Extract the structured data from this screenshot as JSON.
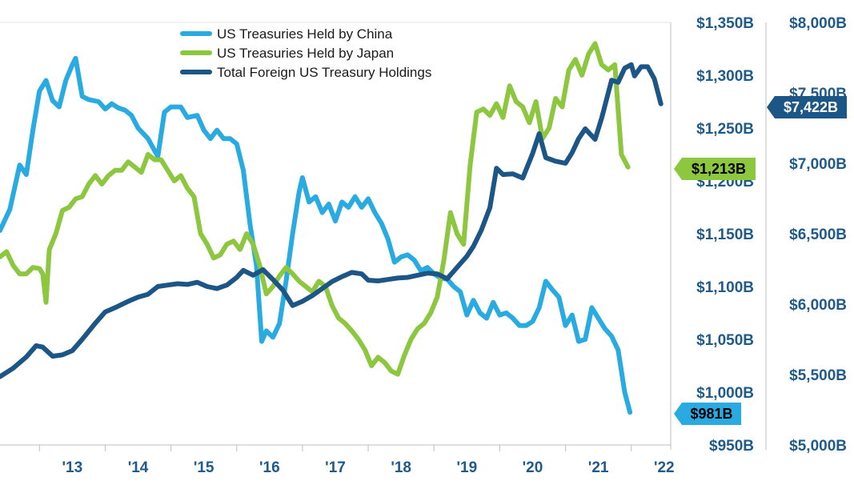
{
  "chart_data": {
    "type": "line",
    "title": "",
    "xlabel": "",
    "ylabel": "",
    "x_ticks": [
      "'13",
      "'14",
      "'15",
      "'16",
      "'17",
      "'18",
      "'19",
      "'20",
      "'21",
      "'22"
    ],
    "xlim": [
      2012.4,
      2022.6
    ],
    "left_axis": {
      "ylim": [
        950,
        1350
      ],
      "ticks": [
        950,
        1000,
        1050,
        1100,
        1150,
        1200,
        1250,
        1300,
        1350
      ],
      "tick_labels": [
        "$950B",
        "$1,000B",
        "$1,050B",
        "$1,100B",
        "$1,150B",
        "$1,200B",
        "$1,250B",
        "$1,300B",
        "$1,350B"
      ]
    },
    "right_axis": {
      "ylim": [
        5000,
        8000
      ],
      "ticks": [
        5000,
        5500,
        6000,
        6500,
        7000,
        7500,
        8000
      ],
      "tick_labels": [
        "$5,000B",
        "$5,500B",
        "$6,000B",
        "$6,500B",
        "$7,000B",
        "$7,500B",
        "$8,000B"
      ]
    },
    "grid": false,
    "legend_position": "top-center",
    "series": [
      {
        "name": "US Treasuries Held by China",
        "axis": "left",
        "color": "#29abe2",
        "end_label": "$981B",
        "points": [
          [
            2012.4,
            1153
          ],
          [
            2012.55,
            1173
          ],
          [
            2012.7,
            1215
          ],
          [
            2012.8,
            1206
          ],
          [
            2012.9,
            1248
          ],
          [
            2013.0,
            1285
          ],
          [
            2013.1,
            1295
          ],
          [
            2013.2,
            1276
          ],
          [
            2013.3,
            1270
          ],
          [
            2013.4,
            1295
          ],
          [
            2013.5,
            1310
          ],
          [
            2013.55,
            1316
          ],
          [
            2013.65,
            1280
          ],
          [
            2013.75,
            1277
          ],
          [
            2013.9,
            1275
          ],
          [
            2014.0,
            1268
          ],
          [
            2014.1,
            1273
          ],
          [
            2014.2,
            1269
          ],
          [
            2014.3,
            1267
          ],
          [
            2014.4,
            1262
          ],
          [
            2014.5,
            1250
          ],
          [
            2014.65,
            1240
          ],
          [
            2014.8,
            1223
          ],
          [
            2014.9,
            1265
          ],
          [
            2015.0,
            1270
          ],
          [
            2015.15,
            1270
          ],
          [
            2015.25,
            1260
          ],
          [
            2015.4,
            1262
          ],
          [
            2015.5,
            1248
          ],
          [
            2015.6,
            1240
          ],
          [
            2015.7,
            1248
          ],
          [
            2015.8,
            1240
          ],
          [
            2015.9,
            1240
          ],
          [
            2016.0,
            1235
          ],
          [
            2016.1,
            1210
          ],
          [
            2016.2,
            1160
          ],
          [
            2016.3,
            1120
          ],
          [
            2016.38,
            1048
          ],
          [
            2016.45,
            1058
          ],
          [
            2016.55,
            1052
          ],
          [
            2016.65,
            1065
          ],
          [
            2016.75,
            1105
          ],
          [
            2016.85,
            1150
          ],
          [
            2016.95,
            1190
          ],
          [
            2017.0,
            1203
          ],
          [
            2017.1,
            1180
          ],
          [
            2017.2,
            1185
          ],
          [
            2017.3,
            1170
          ],
          [
            2017.4,
            1178
          ],
          [
            2017.5,
            1162
          ],
          [
            2017.6,
            1180
          ],
          [
            2017.7,
            1175
          ],
          [
            2017.8,
            1185
          ],
          [
            2017.9,
            1175
          ],
          [
            2018.0,
            1183
          ],
          [
            2018.1,
            1170
          ],
          [
            2018.2,
            1160
          ],
          [
            2018.3,
            1145
          ],
          [
            2018.4,
            1123
          ],
          [
            2018.5,
            1128
          ],
          [
            2018.6,
            1130
          ],
          [
            2018.7,
            1125
          ],
          [
            2018.8,
            1115
          ],
          [
            2018.9,
            1118
          ],
          [
            2019.0,
            1112
          ],
          [
            2019.1,
            1108
          ],
          [
            2019.2,
            1107
          ],
          [
            2019.3,
            1100
          ],
          [
            2019.4,
            1095
          ],
          [
            2019.5,
            1073
          ],
          [
            2019.6,
            1087
          ],
          [
            2019.7,
            1075
          ],
          [
            2019.8,
            1070
          ],
          [
            2019.9,
            1085
          ],
          [
            2020.0,
            1073
          ],
          [
            2020.1,
            1075
          ],
          [
            2020.2,
            1070
          ],
          [
            2020.3,
            1063
          ],
          [
            2020.4,
            1063
          ],
          [
            2020.5,
            1067
          ],
          [
            2020.6,
            1080
          ],
          [
            2020.7,
            1105
          ],
          [
            2020.8,
            1097
          ],
          [
            2020.9,
            1090
          ],
          [
            2021.0,
            1063
          ],
          [
            2021.1,
            1073
          ],
          [
            2021.2,
            1048
          ],
          [
            2021.3,
            1050
          ],
          [
            2021.4,
            1080
          ],
          [
            2021.5,
            1070
          ],
          [
            2021.6,
            1060
          ],
          [
            2021.7,
            1053
          ],
          [
            2021.8,
            1040
          ],
          [
            2021.9,
            1000
          ],
          [
            2021.98,
            981
          ]
        ]
      },
      {
        "name": "US Treasuries Held by Japan",
        "axis": "left",
        "color": "#8dc63f",
        "end_label": "$1,213B",
        "points": [
          [
            2012.4,
            1128
          ],
          [
            2012.5,
            1133
          ],
          [
            2012.6,
            1120
          ],
          [
            2012.7,
            1112
          ],
          [
            2012.8,
            1112
          ],
          [
            2012.9,
            1118
          ],
          [
            2013.0,
            1117
          ],
          [
            2013.05,
            1112
          ],
          [
            2013.1,
            1085
          ],
          [
            2013.15,
            1135
          ],
          [
            2013.25,
            1150
          ],
          [
            2013.35,
            1172
          ],
          [
            2013.45,
            1175
          ],
          [
            2013.55,
            1183
          ],
          [
            2013.65,
            1185
          ],
          [
            2013.75,
            1197
          ],
          [
            2013.85,
            1205
          ],
          [
            2013.95,
            1197
          ],
          [
            2014.05,
            1205
          ],
          [
            2014.15,
            1210
          ],
          [
            2014.25,
            1210
          ],
          [
            2014.35,
            1218
          ],
          [
            2014.45,
            1213
          ],
          [
            2014.55,
            1208
          ],
          [
            2014.65,
            1225
          ],
          [
            2014.75,
            1220
          ],
          [
            2014.85,
            1220
          ],
          [
            2014.95,
            1210
          ],
          [
            2015.05,
            1200
          ],
          [
            2015.15,
            1205
          ],
          [
            2015.25,
            1193
          ],
          [
            2015.35,
            1185
          ],
          [
            2015.45,
            1150
          ],
          [
            2015.55,
            1140
          ],
          [
            2015.65,
            1127
          ],
          [
            2015.75,
            1130
          ],
          [
            2015.85,
            1140
          ],
          [
            2015.95,
            1143
          ],
          [
            2016.05,
            1135
          ],
          [
            2016.15,
            1150
          ],
          [
            2016.25,
            1140
          ],
          [
            2016.35,
            1120
          ],
          [
            2016.45,
            1093
          ],
          [
            2016.55,
            1100
          ],
          [
            2016.65,
            1110
          ],
          [
            2016.75,
            1118
          ],
          [
            2016.85,
            1112
          ],
          [
            2016.95,
            1105
          ],
          [
            2017.05,
            1100
          ],
          [
            2017.15,
            1095
          ],
          [
            2017.25,
            1105
          ],
          [
            2017.35,
            1100
          ],
          [
            2017.45,
            1082
          ],
          [
            2017.55,
            1070
          ],
          [
            2017.65,
            1065
          ],
          [
            2017.75,
            1058
          ],
          [
            2017.85,
            1050
          ],
          [
            2017.95,
            1040
          ],
          [
            2018.05,
            1025
          ],
          [
            2018.15,
            1033
          ],
          [
            2018.25,
            1028
          ],
          [
            2018.35,
            1020
          ],
          [
            2018.45,
            1017
          ],
          [
            2018.55,
            1035
          ],
          [
            2018.65,
            1050
          ],
          [
            2018.75,
            1060
          ],
          [
            2018.85,
            1065
          ],
          [
            2018.95,
            1075
          ],
          [
            2019.05,
            1090
          ],
          [
            2019.15,
            1125
          ],
          [
            2019.25,
            1170
          ],
          [
            2019.35,
            1150
          ],
          [
            2019.45,
            1140
          ],
          [
            2019.55,
            1215
          ],
          [
            2019.65,
            1265
          ],
          [
            2019.75,
            1268
          ],
          [
            2019.85,
            1262
          ],
          [
            2019.95,
            1273
          ],
          [
            2020.05,
            1260
          ],
          [
            2020.15,
            1290
          ],
          [
            2020.25,
            1275
          ],
          [
            2020.35,
            1270
          ],
          [
            2020.45,
            1255
          ],
          [
            2020.55,
            1275
          ],
          [
            2020.65,
            1240
          ],
          [
            2020.75,
            1250
          ],
          [
            2020.85,
            1278
          ],
          [
            2020.95,
            1270
          ],
          [
            2021.05,
            1305
          ],
          [
            2021.15,
            1315
          ],
          [
            2021.25,
            1300
          ],
          [
            2021.35,
            1320
          ],
          [
            2021.45,
            1330
          ],
          [
            2021.55,
            1310
          ],
          [
            2021.65,
            1305
          ],
          [
            2021.75,
            1310
          ],
          [
            2021.85,
            1225
          ],
          [
            2021.95,
            1213
          ]
        ]
      },
      {
        "name": "Total Foreign US Treasury Holdings",
        "axis": "right",
        "color": "#1c5687",
        "end_label": "$7,422B",
        "points": [
          [
            2012.4,
            5485
          ],
          [
            2012.6,
            5545
          ],
          [
            2012.8,
            5625
          ],
          [
            2012.95,
            5705
          ],
          [
            2013.05,
            5695
          ],
          [
            2013.2,
            5630
          ],
          [
            2013.35,
            5640
          ],
          [
            2013.5,
            5670
          ],
          [
            2013.65,
            5750
          ],
          [
            2013.85,
            5865
          ],
          [
            2014.0,
            5945
          ],
          [
            2014.15,
            5975
          ],
          [
            2014.35,
            6020
          ],
          [
            2014.5,
            6050
          ],
          [
            2014.65,
            6070
          ],
          [
            2014.8,
            6125
          ],
          [
            2014.95,
            6135
          ],
          [
            2015.1,
            6145
          ],
          [
            2015.25,
            6140
          ],
          [
            2015.4,
            6155
          ],
          [
            2015.55,
            6125
          ],
          [
            2015.7,
            6110
          ],
          [
            2015.85,
            6135
          ],
          [
            2016.0,
            6190
          ],
          [
            2016.1,
            6240
          ],
          [
            2016.25,
            6205
          ],
          [
            2016.4,
            6245
          ],
          [
            2016.55,
            6175
          ],
          [
            2016.7,
            6100
          ],
          [
            2016.85,
            5990
          ],
          [
            2017.0,
            6020
          ],
          [
            2017.15,
            6060
          ],
          [
            2017.3,
            6110
          ],
          [
            2017.45,
            6160
          ],
          [
            2017.6,
            6195
          ],
          [
            2017.75,
            6225
          ],
          [
            2017.9,
            6215
          ],
          [
            2018.0,
            6170
          ],
          [
            2018.15,
            6165
          ],
          [
            2018.3,
            6175
          ],
          [
            2018.45,
            6185
          ],
          [
            2018.6,
            6190
          ],
          [
            2018.75,
            6205
          ],
          [
            2018.9,
            6220
          ],
          [
            2019.05,
            6215
          ],
          [
            2019.2,
            6180
          ],
          [
            2019.35,
            6260
          ],
          [
            2019.5,
            6340
          ],
          [
            2019.6,
            6410
          ],
          [
            2019.72,
            6525
          ],
          [
            2019.85,
            6685
          ],
          [
            2019.95,
            6965
          ],
          [
            2020.05,
            6920
          ],
          [
            2020.2,
            6925
          ],
          [
            2020.35,
            6895
          ],
          [
            2020.5,
            7070
          ],
          [
            2020.6,
            7210
          ],
          [
            2020.7,
            7040
          ],
          [
            2020.85,
            7015
          ],
          [
            2021.0,
            7000
          ],
          [
            2021.1,
            7075
          ],
          [
            2021.2,
            7175
          ],
          [
            2021.3,
            7245
          ],
          [
            2021.45,
            7170
          ],
          [
            2021.55,
            7320
          ],
          [
            2021.7,
            7590
          ],
          [
            2021.8,
            7575
          ],
          [
            2021.9,
            7675
          ],
          [
            2022.0,
            7700
          ],
          [
            2022.05,
            7620
          ],
          [
            2022.15,
            7685
          ],
          [
            2022.25,
            7685
          ],
          [
            2022.35,
            7600
          ],
          [
            2022.45,
            7422
          ]
        ]
      }
    ]
  }
}
